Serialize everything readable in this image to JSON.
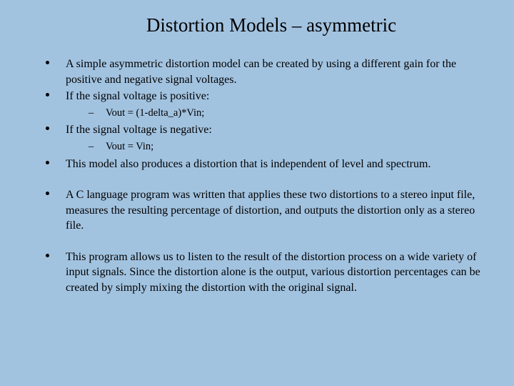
{
  "colors": {
    "background": "#a2c3e0",
    "text": "#000000",
    "bullet": "#000000"
  },
  "typography": {
    "title_fontsize": 27,
    "body_fontsize": 16,
    "sub_fontsize": 14.5,
    "font_family": "Georgia, 'Times New Roman', Times, serif"
  },
  "title": "Distortion Models – asymmetric",
  "bullets": {
    "b1": "A simple asymmetric distortion model can be created by using a  different gain for the positive and negative signal voltages.",
    "b2": "If the signal voltage is positive:",
    "b2_sub": "Vout = (1-delta_a)*Vin;",
    "b3": "If the signal voltage is negative:",
    "b3_sub": "Vout = Vin;",
    "b4": "This model also produces a distortion that is independent of level and spectrum.",
    "b5": "A C language program was written that applies these two distortions to a stereo input file, measures the resulting percentage of distortion, and outputs the distortion only as a stereo file.",
    "b6": "This program allows us to listen to the result of the distortion process on a wide variety of input signals.  Since the distortion alone is the output, various distortion percentages can be created by simply mixing the distortion with the original signal."
  }
}
